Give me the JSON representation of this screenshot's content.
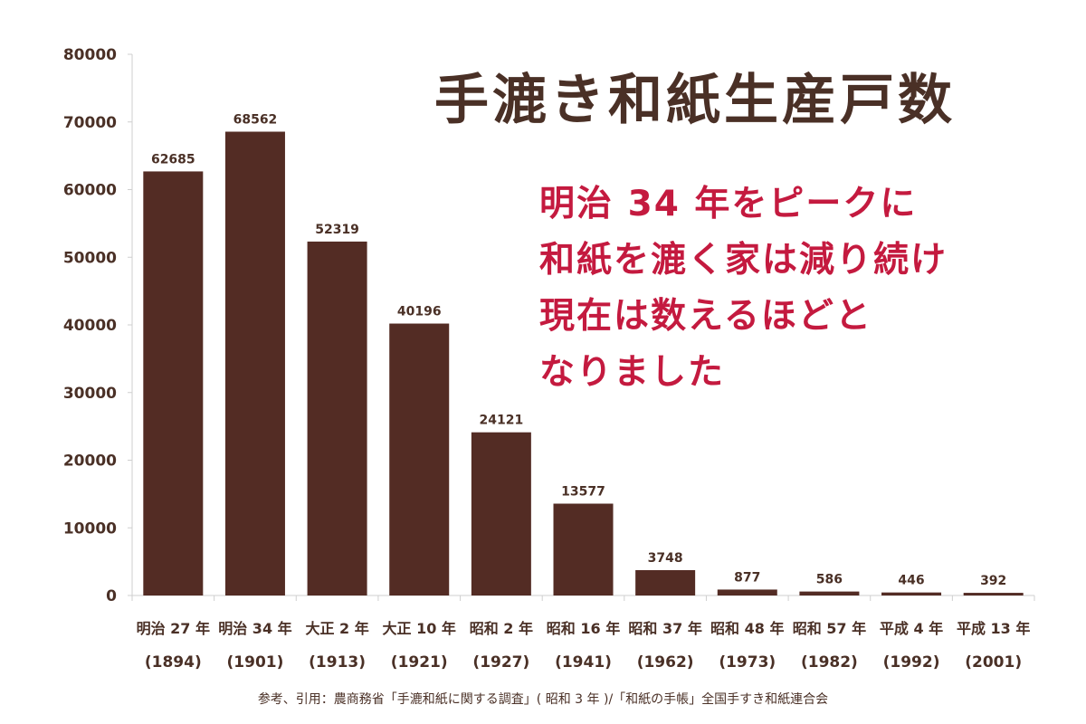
{
  "chart_data": {
    "type": "bar",
    "title": "手漉き和紙生産戸数",
    "categories": [
      {
        "era": "明治 27 年",
        "year": "(1894)"
      },
      {
        "era": "明治 34 年",
        "year": "(1901)"
      },
      {
        "era": "大正 2 年",
        "year": "(1913)"
      },
      {
        "era": "大正 10 年",
        "year": "(1921)"
      },
      {
        "era": "昭和 2 年",
        "year": "(1927)"
      },
      {
        "era": "昭和 16 年",
        "year": "(1941)"
      },
      {
        "era": "昭和 37 年",
        "year": "(1962)"
      },
      {
        "era": "昭和 48 年",
        "year": "(1973)"
      },
      {
        "era": "昭和 57 年",
        "year": "(1982)"
      },
      {
        "era": "平成 4 年",
        "year": "(1992)"
      },
      {
        "era": "平成 13 年",
        "year": "(2001)"
      }
    ],
    "values": [
      62685,
      68562,
      52319,
      40196,
      24121,
      13577,
      3748,
      877,
      586,
      446,
      392
    ],
    "yticks": [
      0,
      10000,
      20000,
      30000,
      40000,
      50000,
      60000,
      70000,
      80000
    ],
    "ylim": [
      0,
      80000
    ],
    "grid": false,
    "bar_color": "#532c24",
    "text_color": "#4a3026"
  },
  "annotation": {
    "lines": [
      "明治 34 年をピークに",
      "和紙を漉く家は減り続け",
      "現在は数えるほどと",
      "なりました"
    ],
    "color": "#c41a3f"
  },
  "source": "参考、引用：農商務省「手漉和紙に関する調査」( 昭和 3 年 )/「和紙の手帳」全国手すき和紙連合会"
}
